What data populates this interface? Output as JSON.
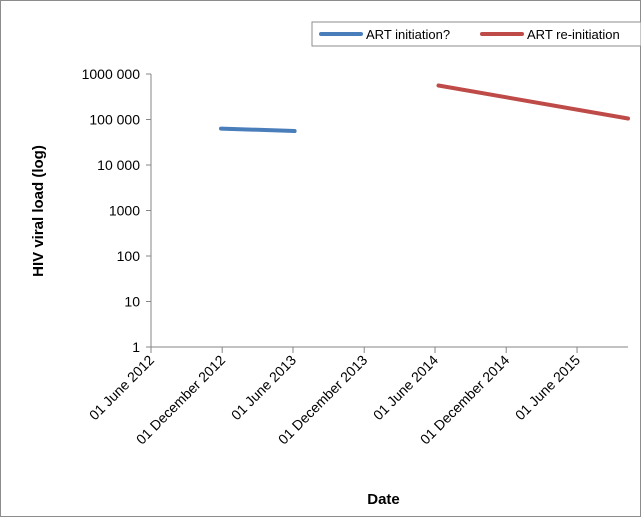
{
  "chart_data": {
    "type": "line",
    "xlabel": "Date",
    "ylabel": "HIV viral load (log)",
    "y_scale": "log",
    "ylim": [
      1,
      1000000
    ],
    "xlim": [
      "2012-06-01",
      "2015-10-10"
    ],
    "y_ticks": [
      {
        "value": 1,
        "label": "1"
      },
      {
        "value": 10,
        "label": "10"
      },
      {
        "value": 100,
        "label": "100"
      },
      {
        "value": 1000,
        "label": "1000"
      },
      {
        "value": 10000,
        "label": "10 000"
      },
      {
        "value": 100000,
        "label": "100 000"
      },
      {
        "value": 1000000,
        "label": "1000 000"
      }
    ],
    "x_ticks": [
      {
        "value": "2012-06-01",
        "label": "01 June 2012"
      },
      {
        "value": "2012-12-01",
        "label": "01 December 2012"
      },
      {
        "value": "2013-06-01",
        "label": "01 June 2013"
      },
      {
        "value": "2013-12-01",
        "label": "01 December 2013"
      },
      {
        "value": "2014-06-01",
        "label": "01 June 2014"
      },
      {
        "value": "2014-12-01",
        "label": "01 December 2014"
      },
      {
        "value": "2015-06-01",
        "label": "01 June 2015"
      }
    ],
    "series": [
      {
        "name": "ART initiation?",
        "color": "#4a7ebb",
        "points": [
          {
            "x": "2012-11-28",
            "y": 63000
          },
          {
            "x": "2013-06-05",
            "y": 56000
          }
        ]
      },
      {
        "name": "ART re-initiation",
        "color": "#be4b48",
        "points": [
          {
            "x": "2014-06-10",
            "y": 560000
          },
          {
            "x": "2015-10-10",
            "y": 105000
          }
        ]
      }
    ],
    "legend_position": "top-right",
    "grid": false
  }
}
